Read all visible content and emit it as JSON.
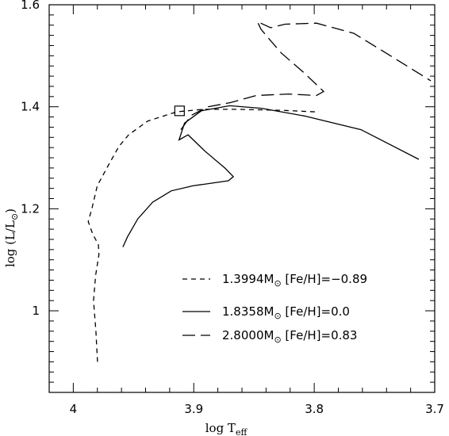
{
  "chart_data": {
    "type": "line",
    "xlabel": "log T",
    "xlabel_sub": "eff",
    "ylabel": "log (L/L",
    "ylabel_suffix": ")",
    "xlim": [
      4.02,
      3.7
    ],
    "ylim": [
      0.84,
      1.6
    ],
    "x_reversed": true,
    "x_ticks": [
      4.0,
      3.9,
      3.8,
      3.7
    ],
    "x_tick_labels": [
      "4",
      "3.9",
      "3.8",
      "3.7"
    ],
    "y_ticks": [
      1.0,
      1.2,
      1.4,
      1.6
    ],
    "y_tick_labels": [
      "1",
      "1.2",
      "1.4",
      "1.6"
    ],
    "legend_position": "bottom-right",
    "series": [
      {
        "name": "1.3994M",
        "name_suffix": "  [Fe/H]=−0.89",
        "dash": "short",
        "points": [
          [
            3.9799,
            0.9
          ],
          [
            3.9812,
            0.96
          ],
          [
            3.9832,
            1.02
          ],
          [
            3.9814,
            1.07
          ],
          [
            3.9787,
            1.11
          ],
          [
            3.9792,
            1.13
          ],
          [
            3.9838,
            1.15
          ],
          [
            3.9876,
            1.175
          ],
          [
            3.9846,
            1.2
          ],
          [
            3.9801,
            1.245
          ],
          [
            3.9721,
            1.28
          ],
          [
            3.9622,
            1.322
          ],
          [
            3.9541,
            1.345
          ],
          [
            3.9382,
            1.372
          ],
          [
            3.9142,
            1.39
          ],
          [
            3.8922,
            1.395
          ],
          [
            3.8642,
            1.395
          ],
          [
            3.8262,
            1.393
          ],
          [
            3.7992,
            1.39
          ]
        ]
      },
      {
        "name": "1.8358M",
        "name_suffix": "  [Fe/H]=0.0",
        "dash": "solid",
        "points": [
          [
            3.9588,
            1.125
          ],
          [
            3.955,
            1.145
          ],
          [
            3.9465,
            1.18
          ],
          [
            3.9341,
            1.213
          ],
          [
            3.9187,
            1.235
          ],
          [
            3.9007,
            1.245
          ],
          [
            3.8712,
            1.255
          ],
          [
            3.8672,
            1.263
          ],
          [
            3.8742,
            1.28
          ],
          [
            3.8907,
            1.313
          ],
          [
            3.9047,
            1.345
          ],
          [
            3.9122,
            1.335
          ],
          [
            3.9077,
            1.368
          ],
          [
            3.8937,
            1.392
          ],
          [
            3.8702,
            1.402
          ],
          [
            3.8437,
            1.397
          ],
          [
            3.8082,
            1.382
          ],
          [
            3.7612,
            1.355
          ],
          [
            3.7132,
            1.297
          ]
        ]
      },
      {
        "name": "2.8000M",
        "name_suffix": "  [Fe/H]=0.83",
        "dash": "long",
        "points": [
          [
            3.9107,
            1.355
          ],
          [
            3.9022,
            1.383
          ],
          [
            3.8882,
            1.4
          ],
          [
            3.8697,
            1.408
          ],
          [
            3.8482,
            1.422
          ],
          [
            3.8212,
            1.425
          ],
          [
            3.7982,
            1.422
          ],
          [
            3.7922,
            1.43
          ],
          [
            3.8082,
            1.466
          ],
          [
            3.8272,
            1.505
          ],
          [
            3.8382,
            1.535
          ],
          [
            3.8442,
            1.552
          ],
          [
            3.8472,
            1.567
          ],
          [
            3.8362,
            1.555
          ],
          [
            3.8242,
            1.562
          ],
          [
            3.7982,
            1.564
          ],
          [
            3.7672,
            1.544
          ],
          [
            3.7402,
            1.505
          ],
          [
            3.7032,
            1.451
          ]
        ]
      }
    ],
    "annotation": {
      "marker": "open-square",
      "x": 3.9118,
      "y": 1.392
    }
  }
}
